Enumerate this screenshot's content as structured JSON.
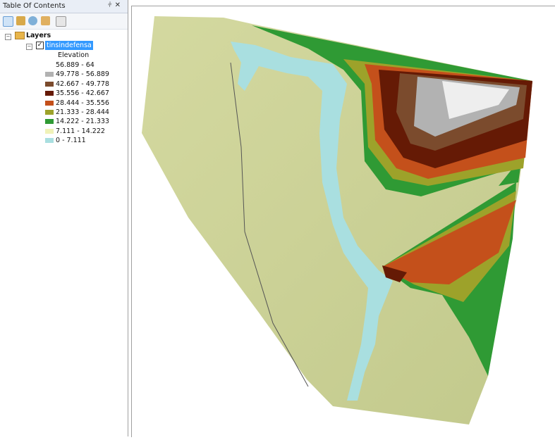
{
  "toc": {
    "title": "Table Of Contents",
    "root": "Layers",
    "layer": "tinsindefensa",
    "field": "Elevation",
    "classes": [
      {
        "label": "56.889 - 64",
        "color": "#ffffff"
      },
      {
        "label": "49.778 - 56.889",
        "color": "#b2b2b2"
      },
      {
        "label": "42.667 - 49.778",
        "color": "#7b4b2d"
      },
      {
        "label": "35.556 - 42.667",
        "color": "#651a05"
      },
      {
        "label": "28.444 - 35.556",
        "color": "#c4501b"
      },
      {
        "label": "21.333 - 28.444",
        "color": "#9da22a"
      },
      {
        "label": "14.222 - 21.333",
        "color": "#2f9a34"
      },
      {
        "label": "7.111 - 14.222",
        "color": "#f0f2b8"
      },
      {
        "label": "0 - 7.111",
        "color": "#a9dfe0"
      }
    ]
  }
}
